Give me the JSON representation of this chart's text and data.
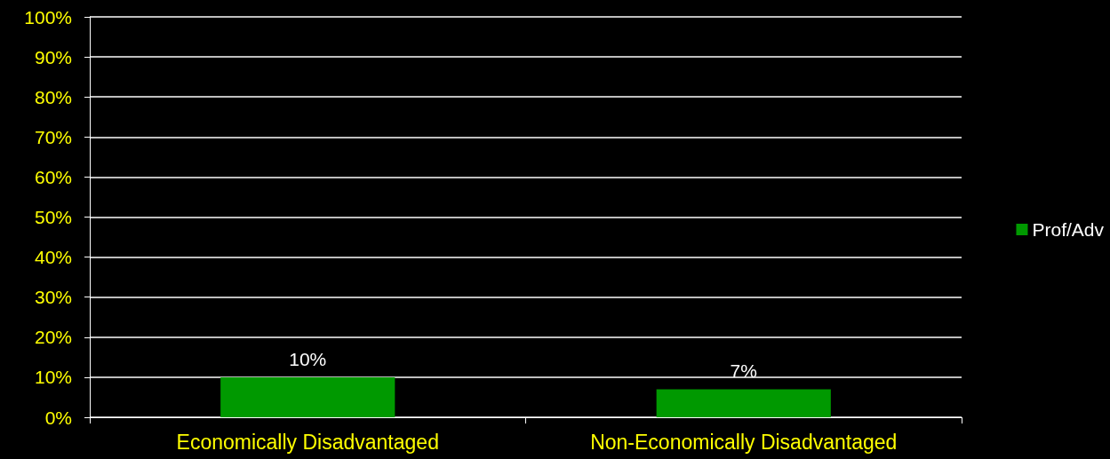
{
  "chart_data": {
    "type": "bar",
    "categories": [
      "Economically Disadvantaged",
      "Non-Economically Disadvantaged"
    ],
    "series": [
      {
        "name": "Prof/Adv",
        "color": "#009900",
        "values": [
          10,
          7
        ],
        "value_labels": [
          "10%",
          "7%"
        ]
      }
    ],
    "ylim": [
      0,
      100
    ],
    "yticks": [
      {
        "value": 0,
        "label": "0%"
      },
      {
        "value": 10,
        "label": "10%"
      },
      {
        "value": 20,
        "label": "20%"
      },
      {
        "value": 30,
        "label": "30%"
      },
      {
        "value": 40,
        "label": "40%"
      },
      {
        "value": 50,
        "label": "50%"
      },
      {
        "value": 60,
        "label": "60%"
      },
      {
        "value": 70,
        "label": "70%"
      },
      {
        "value": 80,
        "label": "80%"
      },
      {
        "value": 90,
        "label": "90%"
      },
      {
        "value": 100,
        "label": "100%"
      }
    ],
    "grid": "y",
    "legend": "right"
  }
}
